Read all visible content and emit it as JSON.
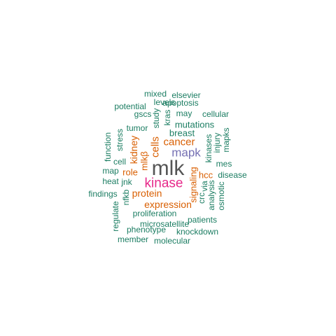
{
  "colors": {
    "teal": "#1b7d62",
    "orange": "#d95f02",
    "purple": "#7570b3",
    "magenta": "#e7298a",
    "dark": "#555555"
  },
  "words": [
    {
      "text": "mlk",
      "color": "dark",
      "vertical": false
    },
    {
      "text": "kinase",
      "color": "magenta",
      "vertical": false
    },
    {
      "text": "mapk",
      "color": "purple",
      "vertical": false
    },
    {
      "text": "cancer",
      "color": "orange",
      "vertical": false
    },
    {
      "text": "expression",
      "color": "orange",
      "vertical": false
    },
    {
      "text": "protein",
      "color": "orange",
      "vertical": false
    },
    {
      "text": "signaling",
      "color": "orange",
      "vertical": true
    },
    {
      "text": "cells",
      "color": "orange",
      "vertical": true
    },
    {
      "text": "kidney",
      "color": "orange",
      "vertical": true
    },
    {
      "text": "mlkβ",
      "color": "orange",
      "vertical": true
    },
    {
      "text": "role",
      "color": "orange",
      "vertical": false
    },
    {
      "text": "hcc",
      "color": "orange",
      "vertical": false
    },
    {
      "text": "breast",
      "color": "teal",
      "vertical": false
    },
    {
      "text": "mutations",
      "color": "teal",
      "vertical": false
    },
    {
      "text": "tumor",
      "color": "teal",
      "vertical": false
    },
    {
      "text": "mixed",
      "color": "teal",
      "vertical": false
    },
    {
      "text": "elsevier",
      "color": "teal",
      "vertical": false
    },
    {
      "text": "potential",
      "color": "teal",
      "vertical": false
    },
    {
      "text": "levels",
      "color": "teal",
      "vertical": false
    },
    {
      "text": "apoptosis",
      "color": "teal",
      "vertical": false
    },
    {
      "text": "gscs",
      "color": "teal",
      "vertical": false
    },
    {
      "text": "may",
      "color": "teal",
      "vertical": false
    },
    {
      "text": "cellular",
      "color": "teal",
      "vertical": false
    },
    {
      "text": "study",
      "color": "teal",
      "vertical": true
    },
    {
      "text": "kras",
      "color": "teal",
      "vertical": true
    },
    {
      "text": "function",
      "color": "teal",
      "vertical": true
    },
    {
      "text": "stress",
      "color": "teal",
      "vertical": true
    },
    {
      "text": "kinases",
      "color": "teal",
      "vertical": true
    },
    {
      "text": "injury",
      "color": "teal",
      "vertical": true
    },
    {
      "text": "mapks",
      "color": "teal",
      "vertical": true
    },
    {
      "text": "cell",
      "color": "teal",
      "vertical": false
    },
    {
      "text": "mes",
      "color": "teal",
      "vertical": false
    },
    {
      "text": "map",
      "color": "teal",
      "vertical": false
    },
    {
      "text": "disease",
      "color": "teal",
      "vertical": false
    },
    {
      "text": "heat",
      "color": "teal",
      "vertical": false
    },
    {
      "text": "jnk",
      "color": "teal",
      "vertical": false
    },
    {
      "text": "findings",
      "color": "teal",
      "vertical": false
    },
    {
      "text": "nfkb",
      "color": "teal",
      "vertical": true
    },
    {
      "text": "regulate",
      "color": "teal",
      "vertical": true
    },
    {
      "text": "crc",
      "color": "teal",
      "vertical": true
    },
    {
      "text": "via",
      "color": "teal",
      "vertical": true
    },
    {
      "text": "analysis",
      "color": "teal",
      "vertical": true
    },
    {
      "text": "osmotic",
      "color": "teal",
      "vertical": true
    },
    {
      "text": "proliferation",
      "color": "teal",
      "vertical": false
    },
    {
      "text": "patients",
      "color": "teal",
      "vertical": false
    },
    {
      "text": "microsatellite",
      "color": "teal",
      "vertical": false
    },
    {
      "text": "phenotype",
      "color": "teal",
      "vertical": false
    },
    {
      "text": "knockdown",
      "color": "teal",
      "vertical": false
    },
    {
      "text": "member",
      "color": "teal",
      "vertical": false
    },
    {
      "text": "molecular",
      "color": "teal",
      "vertical": false
    }
  ]
}
